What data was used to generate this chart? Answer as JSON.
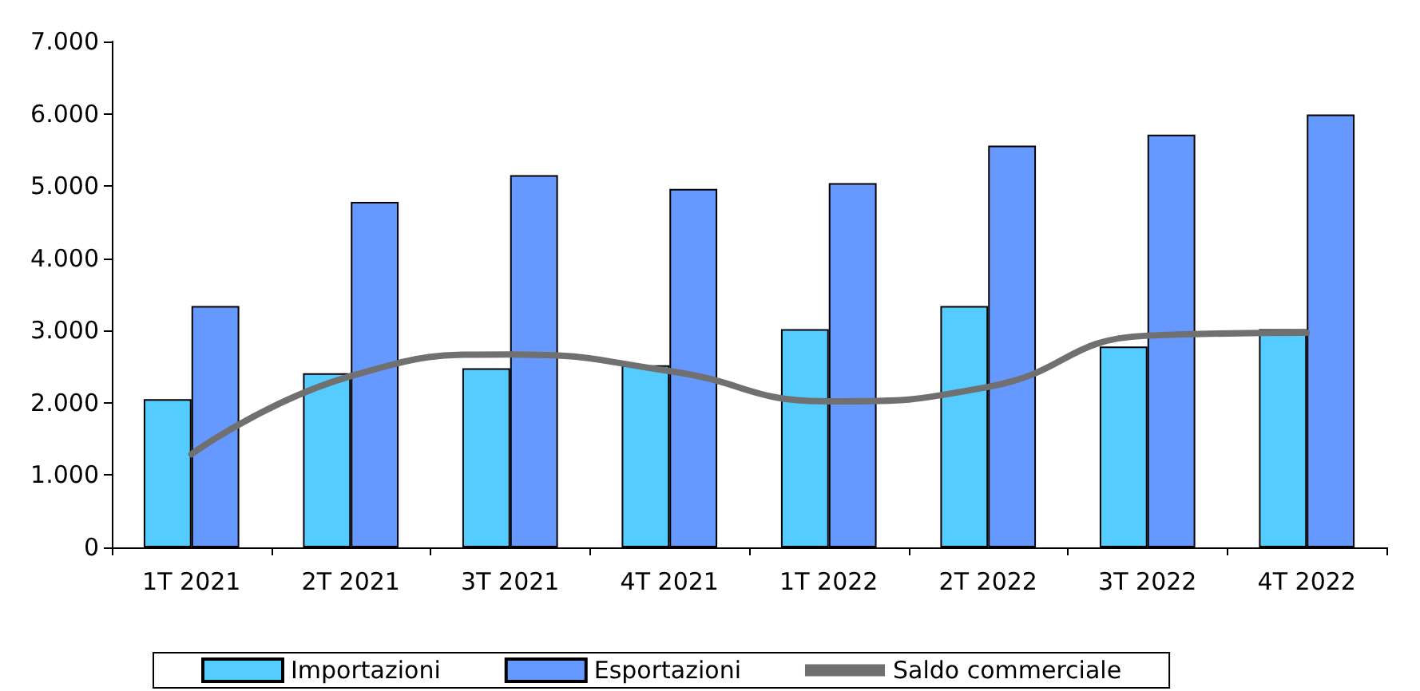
{
  "chart_data": {
    "type": "bar",
    "categories": [
      "1T 2021",
      "2T 2021",
      "3T 2021",
      "4T 2021",
      "1T 2022",
      "2T 2022",
      "3T 2022",
      "4T 2022"
    ],
    "series": [
      {
        "name": "Importazioni",
        "color": "#55ccff",
        "values": [
          2050,
          2410,
          2480,
          2520,
          3020,
          3340,
          2780,
          3020
        ]
      },
      {
        "name": "Esportazioni",
        "color": "#6699ff",
        "values": [
          3340,
          4780,
          5150,
          4960,
          5040,
          5560,
          5710,
          5990
        ]
      },
      {
        "name": "Saldo commerciale",
        "type": "line",
        "color": "#707070",
        "values": [
          1290,
          2370,
          2670,
          2440,
          2020,
          2220,
          2930,
          2970
        ]
      }
    ],
    "ylim": [
      0,
      7000
    ],
    "yticks": [
      {
        "value": 0,
        "label": "0"
      },
      {
        "value": 1000,
        "label": "1.000"
      },
      {
        "value": 2000,
        "label": "2.000"
      },
      {
        "value": 3000,
        "label": "3.000"
      },
      {
        "value": 4000,
        "label": "4.000"
      },
      {
        "value": 5000,
        "label": "5.000"
      },
      {
        "value": 6000,
        "label": "6.000"
      },
      {
        "value": 7000,
        "label": "7.000"
      }
    ],
    "grid": false,
    "legend": "bottom",
    "marker": "none",
    "line_style": "solid"
  }
}
